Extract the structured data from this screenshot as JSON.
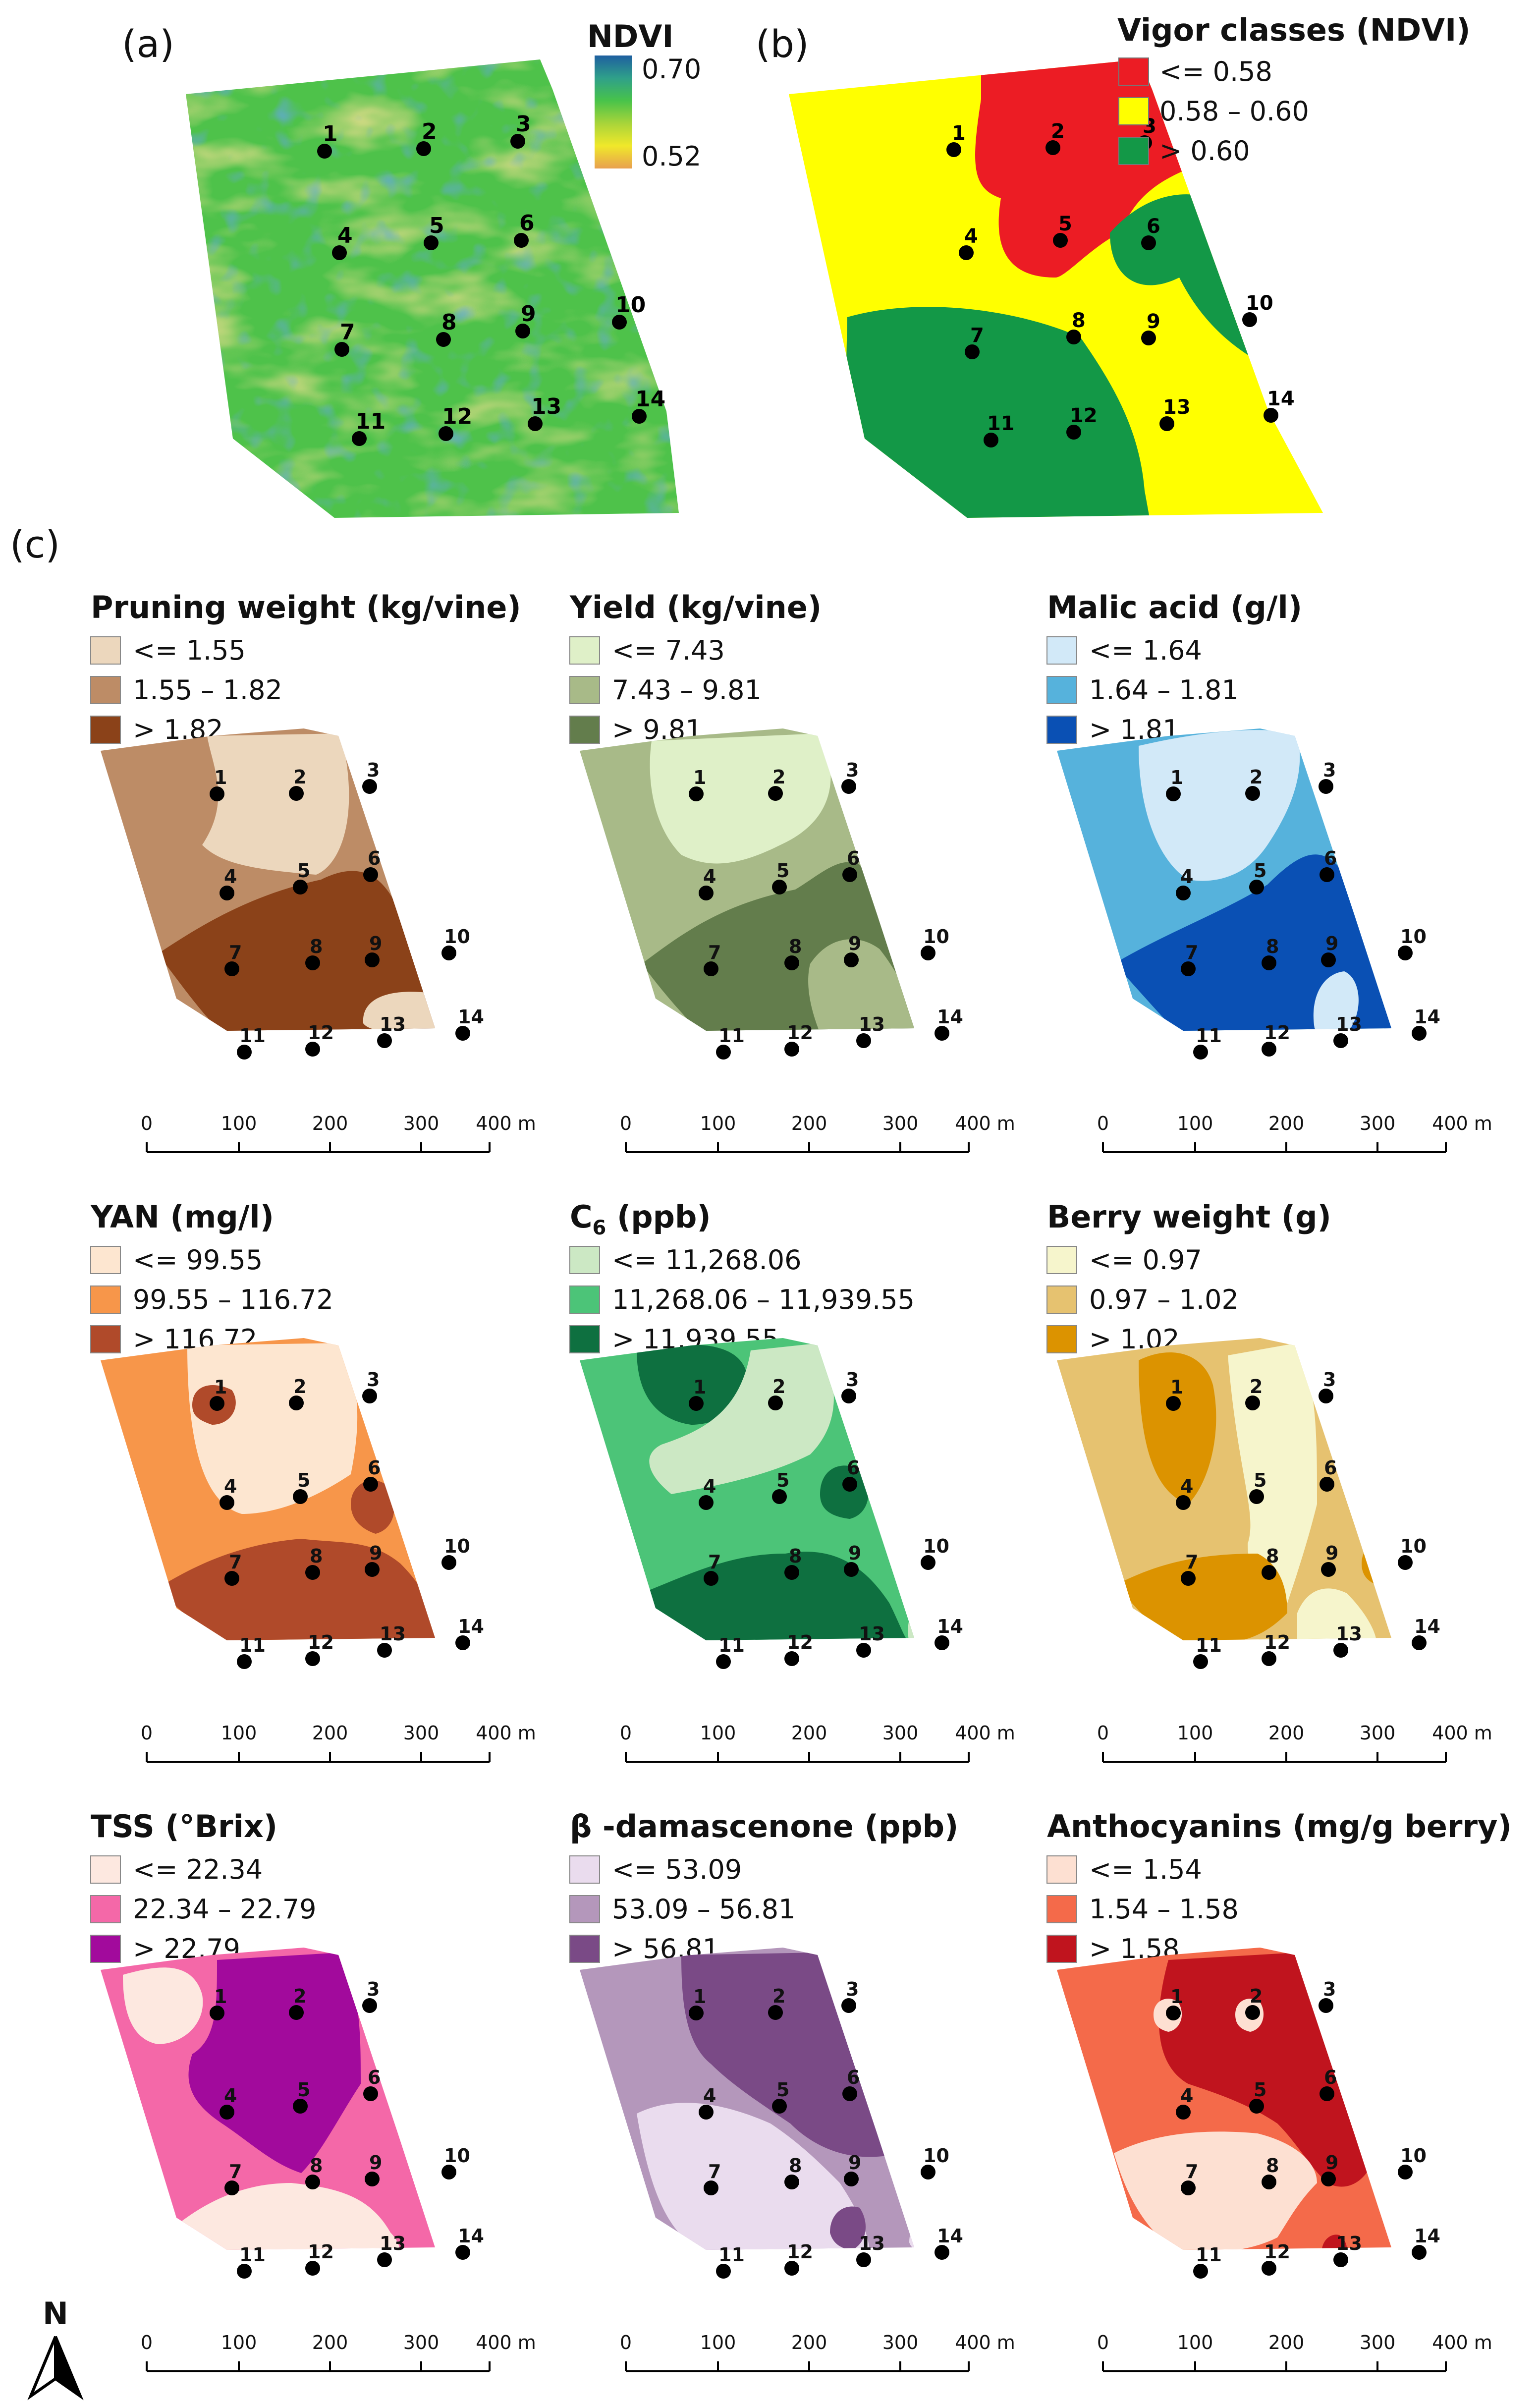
{
  "panel_labels": [
    "(a)",
    "(b)",
    "(c)"
  ],
  "north_label": "N",
  "scale": {
    "ticks": [
      "0",
      "100",
      "200",
      "300",
      "400 m"
    ]
  },
  "points": [
    "1",
    "2",
    "3",
    "4",
    "5",
    "6",
    "7",
    "8",
    "9",
    "10",
    "11",
    "12",
    "13",
    "14"
  ],
  "panel_a": {
    "title": "NDVI",
    "max_label": "0.70",
    "min_label": "0.52",
    "ramp_colors": [
      "#1e5fa0",
      "#2fa08a",
      "#48c34a",
      "#a8d43a",
      "#f0e82a",
      "#e8a050"
    ]
  },
  "panel_b": {
    "title": "Vigor classes (NDVI)",
    "classes": [
      {
        "label": "<= 0.58",
        "color": "#ec1c24"
      },
      {
        "label": "0.58 – 0.60",
        "color": "#ffff00"
      },
      {
        "label": "> 0.60",
        "color": "#139847"
      }
    ]
  },
  "maps": [
    {
      "id": "pruning",
      "title": "Pruning weight (kg/vine)",
      "colors": [
        "#ecd7bd",
        "#bd8c66",
        "#8b4219"
      ],
      "classes": [
        "<= 1.55",
        "1.55 – 1.82",
        "> 1.82"
      ]
    },
    {
      "id": "yield",
      "title": "Yield (kg/vine)",
      "colors": [
        "#dff0c8",
        "#a8ba88",
        "#637d4c"
      ],
      "classes": [
        "<= 7.43",
        "7.43 – 9.81",
        "> 9.81"
      ]
    },
    {
      "id": "malic",
      "title": "Malic acid (g/l)",
      "colors": [
        "#d2e9f8",
        "#56b2dc",
        "#0a50b4"
      ],
      "classes": [
        "<= 1.64",
        "1.64 – 1.81",
        "> 1.81"
      ]
    },
    {
      "id": "yan",
      "title": "YAN (mg/l)",
      "colors": [
        "#fde6d0",
        "#f7964a",
        "#b04a2a"
      ],
      "classes": [
        "<= 99.55",
        "99.55 – 116.72",
        "> 116.72"
      ]
    },
    {
      "id": "c6",
      "title": "C6 (ppb)",
      "title_main": "C",
      "title_sub": "6",
      "title_rest": " (ppb)",
      "colors": [
        "#cce8c4",
        "#4cc478",
        "#0e7040"
      ],
      "classes": [
        "<= 11,268.06",
        "11,268.06 – 11,939.55",
        "> 11,939.55"
      ]
    },
    {
      "id": "berry",
      "title": "Berry weight (g)",
      "colors": [
        "#f6f5cc",
        "#e6c270",
        "#dc9300"
      ],
      "classes": [
        "<= 0.97",
        "0.97 – 1.02",
        "> 1.02"
      ]
    },
    {
      "id": "tss",
      "title": "TSS (°Brix)",
      "colors": [
        "#fde8e0",
        "#f468a8",
        "#a20a9c"
      ],
      "classes": [
        "<= 22.34",
        "22.34 – 22.79",
        "> 22.79"
      ]
    },
    {
      "id": "damas",
      "title": "β -damascenone (ppb)",
      "colors": [
        "#eadcee",
        "#b497bb",
        "#7a4a86"
      ],
      "classes": [
        "<= 53.09",
        "53.09 – 56.81",
        "> 56.81"
      ]
    },
    {
      "id": "antho",
      "title": "Anthocyanins (mg/g berry)",
      "colors": [
        "#fde0d2",
        "#f46a4a",
        "#c0141e"
      ],
      "classes": [
        "<= 1.54",
        "1.54 – 1.58",
        "> 1.58"
      ]
    }
  ]
}
